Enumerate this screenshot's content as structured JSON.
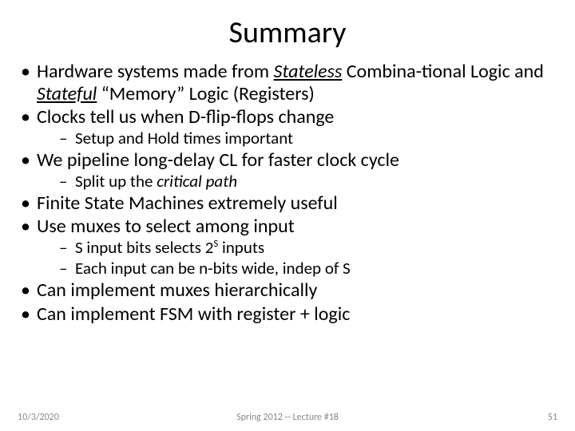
{
  "title": "Summary",
  "bullets": {
    "b1_pre": "Hardware systems made from ",
    "b1_stateless": "Stateless",
    "b1_mid": " Combina-tional Logic and ",
    "b1_stateful": "Stateful",
    "b1_post": " “Memory” Logic (Registers)",
    "b2": "Clocks tell us when D-flip-flops change",
    "b2_s1": "Setup and Hold times important",
    "b3": "We pipeline long-delay CL for faster clock cycle",
    "b3_s1_pre": "Split up the ",
    "b3_s1_em": "critical path",
    "b4": "Finite State Machines extremely useful",
    "b5": "Use muxes to select among input",
    "b5_s1_pre": "S input bits selects 2",
    "b5_s1_sup": "S",
    "b5_s1_post": " inputs",
    "b5_s2": "Each input can be n-bits wide, indep of S",
    "b6": "Can implement muxes hierarchically",
    "b7": "Can implement FSM with register + logic"
  },
  "footer": {
    "date": "10/3/2020",
    "center": "Spring 2012 -- Lecture #18",
    "page": "51"
  },
  "style": {
    "title_fontsize": 38,
    "bullet_fontsize": 24,
    "sub_fontsize": 21,
    "footer_fontsize": 12,
    "footer_color": "#888888",
    "text_color": "#000000",
    "background": "#ffffff"
  }
}
